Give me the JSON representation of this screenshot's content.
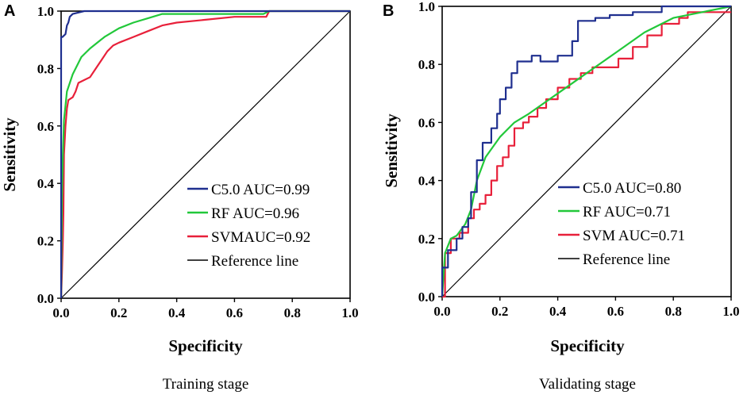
{
  "figure": {
    "panels": [
      "A",
      "B"
    ],
    "captions": [
      "Training stage",
      "Validating stage"
    ]
  },
  "colors": {
    "C5.0": "#1f2f8f",
    "RF": "#22c83a",
    "SVM": "#e8203a",
    "reference": "#000000"
  },
  "chart_data": [
    {
      "type": "line",
      "panel": "A",
      "title": "Training stage",
      "xlabel": "Specificity",
      "ylabel": "Sensitivity",
      "xlim": [
        0.0,
        1.0
      ],
      "ylim": [
        0.0,
        1.0
      ],
      "xticks": [
        "0.0",
        "0.2",
        "0.4",
        "0.6",
        "0.8",
        "1.0"
      ],
      "yticks": [
        "0.0",
        "0.2",
        "0.4",
        "0.6",
        "0.8",
        "1.0"
      ],
      "grid": false,
      "legend_position": "bottom-right",
      "series": [
        {
          "name": "C5.0",
          "legend": "C5.0 AUC=0.99",
          "auc": 0.99,
          "x": [
            0,
            0,
            0.005,
            0.015,
            0.02,
            0.025,
            0.03,
            0.04,
            0.06,
            0.08,
            0.1,
            0.2,
            0.4,
            1.0
          ],
          "y": [
            0,
            0.91,
            0.91,
            0.92,
            0.95,
            0.96,
            0.98,
            0.99,
            0.995,
            1.0,
            1.0,
            1.0,
            1.0,
            1.0
          ]
        },
        {
          "name": "RF",
          "legend": "RF   AUC=0.96",
          "auc": 0.96,
          "x": [
            0,
            0.003,
            0.006,
            0.01,
            0.02,
            0.04,
            0.07,
            0.1,
            0.15,
            0.2,
            0.25,
            0.3,
            0.35,
            0.5,
            0.7,
            0.72,
            1.0
          ],
          "y": [
            0,
            0.35,
            0.5,
            0.62,
            0.72,
            0.78,
            0.84,
            0.87,
            0.91,
            0.94,
            0.96,
            0.975,
            0.99,
            0.99,
            0.99,
            1.0,
            1.0
          ]
        },
        {
          "name": "SVM",
          "legend": "SVMAUC=0.92",
          "auc": 0.92,
          "x": [
            0,
            0.003,
            0.006,
            0.008,
            0.01,
            0.015,
            0.02,
            0.025,
            0.04,
            0.05,
            0.06,
            0.08,
            0.1,
            0.12,
            0.14,
            0.16,
            0.18,
            0.2,
            0.25,
            0.3,
            0.35,
            0.4,
            0.5,
            0.6,
            0.71,
            0.72,
            1.0
          ],
          "y": [
            0,
            0.09,
            0.2,
            0.3,
            0.5,
            0.6,
            0.66,
            0.69,
            0.7,
            0.72,
            0.75,
            0.76,
            0.77,
            0.8,
            0.83,
            0.86,
            0.88,
            0.89,
            0.91,
            0.93,
            0.95,
            0.96,
            0.97,
            0.98,
            0.98,
            1.0,
            1.0
          ]
        },
        {
          "name": "Reference",
          "legend": "Reference line",
          "x": [
            0,
            1
          ],
          "y": [
            0,
            1
          ]
        }
      ]
    },
    {
      "type": "line",
      "panel": "B",
      "title": "Validating stage",
      "xlabel": "Specificity",
      "ylabel": "Sensitivity",
      "xlim": [
        0.0,
        1.0
      ],
      "ylim": [
        0.0,
        1.0
      ],
      "xticks": [
        "0.0",
        "0.2",
        "0.4",
        "0.6",
        "0.8",
        "1.0"
      ],
      "yticks": [
        "0.0",
        "0.2",
        "0.4",
        "0.6",
        "0.8",
        "1.0"
      ],
      "grid": false,
      "legend_position": "bottom-right",
      "series": [
        {
          "name": "C5.0",
          "legend": "C5.0  AUC=0.80",
          "auc": 0.8,
          "x": [
            0,
            0,
            0.02,
            0.02,
            0.05,
            0.05,
            0.07,
            0.07,
            0.09,
            0.09,
            0.1,
            0.1,
            0.12,
            0.12,
            0.14,
            0.14,
            0.17,
            0.17,
            0.19,
            0.19,
            0.2,
            0.2,
            0.22,
            0.22,
            0.24,
            0.24,
            0.26,
            0.26,
            0.31,
            0.31,
            0.34,
            0.34,
            0.4,
            0.4,
            0.45,
            0.45,
            0.47,
            0.47,
            0.53,
            0.53,
            0.58,
            0.58,
            0.66,
            0.66,
            0.76,
            0.76,
            1.0
          ],
          "y": [
            0,
            0.1,
            0.1,
            0.16,
            0.16,
            0.2,
            0.2,
            0.24,
            0.24,
            0.27,
            0.27,
            0.36,
            0.36,
            0.47,
            0.47,
            0.53,
            0.53,
            0.58,
            0.58,
            0.63,
            0.63,
            0.68,
            0.68,
            0.72,
            0.72,
            0.77,
            0.77,
            0.81,
            0.81,
            0.83,
            0.83,
            0.81,
            0.81,
            0.83,
            0.83,
            0.88,
            0.88,
            0.95,
            0.95,
            0.96,
            0.96,
            0.97,
            0.97,
            0.98,
            0.98,
            1.0,
            1.0
          ]
        },
        {
          "name": "RF",
          "legend": "RF    AUC=0.71",
          "auc": 0.71,
          "x": [
            0,
            0.01,
            0.03,
            0.05,
            0.08,
            0.1,
            0.12,
            0.15,
            0.2,
            0.25,
            0.3,
            0.4,
            0.5,
            0.6,
            0.7,
            0.8,
            0.9,
            1.0
          ],
          "y": [
            0,
            0.15,
            0.2,
            0.21,
            0.25,
            0.3,
            0.4,
            0.48,
            0.55,
            0.6,
            0.63,
            0.7,
            0.77,
            0.84,
            0.91,
            0.96,
            0.98,
            1.0
          ]
        },
        {
          "name": "SVM",
          "legend": "SVM AUC=0.71",
          "auc": 0.71,
          "x": [
            0,
            0.01,
            0.01,
            0.03,
            0.03,
            0.06,
            0.06,
            0.09,
            0.09,
            0.11,
            0.11,
            0.13,
            0.13,
            0.15,
            0.15,
            0.17,
            0.17,
            0.19,
            0.19,
            0.21,
            0.21,
            0.23,
            0.23,
            0.25,
            0.25,
            0.28,
            0.28,
            0.3,
            0.3,
            0.33,
            0.33,
            0.36,
            0.36,
            0.4,
            0.4,
            0.44,
            0.44,
            0.48,
            0.48,
            0.52,
            0.52,
            0.61,
            0.61,
            0.66,
            0.66,
            0.71,
            0.71,
            0.76,
            0.76,
            0.82,
            0.82,
            0.85,
            0.85,
            1.0
          ],
          "y": [
            0,
            0,
            0.15,
            0.15,
            0.2,
            0.2,
            0.22,
            0.22,
            0.27,
            0.27,
            0.3,
            0.3,
            0.32,
            0.32,
            0.35,
            0.35,
            0.4,
            0.4,
            0.45,
            0.45,
            0.48,
            0.48,
            0.52,
            0.52,
            0.58,
            0.58,
            0.6,
            0.6,
            0.62,
            0.62,
            0.65,
            0.65,
            0.68,
            0.68,
            0.72,
            0.72,
            0.75,
            0.75,
            0.77,
            0.77,
            0.79,
            0.79,
            0.82,
            0.82,
            0.86,
            0.86,
            0.9,
            0.9,
            0.94,
            0.94,
            0.96,
            0.96,
            0.98,
            0.98
          ]
        },
        {
          "name": "Reference",
          "legend": "Reference line",
          "x": [
            0,
            1
          ],
          "y": [
            0,
            1
          ]
        }
      ]
    }
  ]
}
